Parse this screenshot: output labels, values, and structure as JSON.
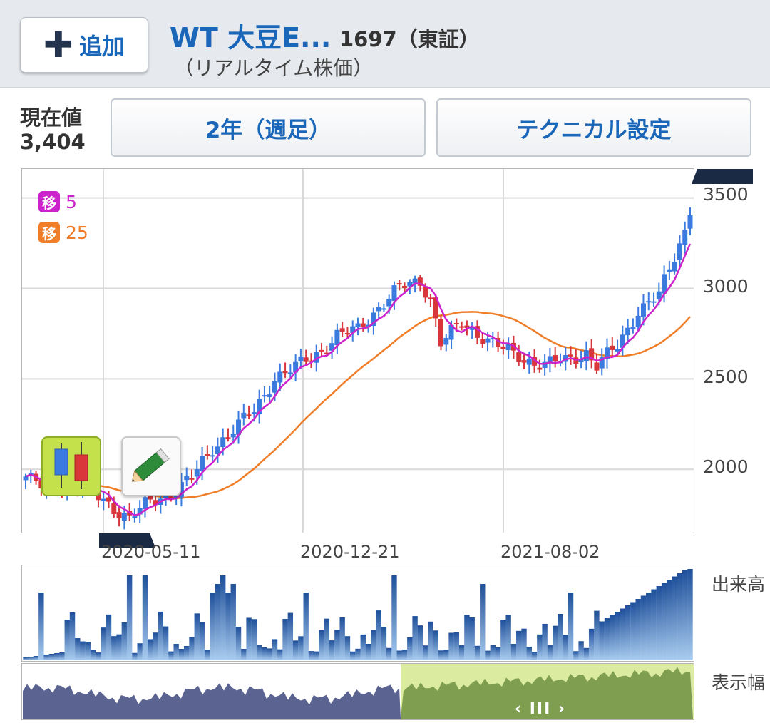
{
  "header": {
    "add_button_label": "追加",
    "add_icon": "plus-icon",
    "title": "WT 大豆E...",
    "code": "1697（東証）",
    "subtitle": "（リアルタイム株価）"
  },
  "price": {
    "label": "現在値",
    "value": "3,404"
  },
  "controls": {
    "period_label": "2年（週足）",
    "technical_label": "テクニカル設定"
  },
  "legend": [
    {
      "badge": "移",
      "value": "5",
      "color": "#cc22cc"
    },
    {
      "badge": "移",
      "value": "25",
      "color": "#f07d28"
    }
  ],
  "tools": {
    "candle_icon": "candlestick-icon",
    "pencil_icon": "pencil-icon"
  },
  "chart_data": {
    "type": "candlestick",
    "y_ticks": [
      "3500",
      "3000",
      "2500",
      "2000"
    ],
    "ylim": [
      1650,
      3660
    ],
    "x_ticks": [
      "2020-05-11",
      "2020-12-21",
      "2021-08-02"
    ],
    "close_anchors": [
      [
        0,
        1960
      ],
      [
        4,
        1880
      ],
      [
        8,
        1940
      ],
      [
        12,
        1880
      ],
      [
        16,
        1810
      ],
      [
        20,
        1730
      ],
      [
        24,
        1820
      ],
      [
        28,
        1870
      ],
      [
        32,
        1950
      ],
      [
        36,
        2120
      ],
      [
        40,
        2220
      ],
      [
        44,
        2320
      ],
      [
        48,
        2510
      ],
      [
        52,
        2560
      ],
      [
        56,
        2640
      ],
      [
        60,
        2740
      ],
      [
        64,
        2770
      ],
      [
        68,
        2900
      ],
      [
        72,
        3000
      ],
      [
        76,
        3040
      ],
      [
        78,
        2950
      ],
      [
        80,
        2700
      ],
      [
        84,
        2800
      ],
      [
        88,
        2740
      ],
      [
        92,
        2660
      ],
      [
        96,
        2610
      ],
      [
        100,
        2580
      ],
      [
        104,
        2600
      ],
      [
        108,
        2650
      ],
      [
        110,
        2570
      ],
      [
        114,
        2680
      ],
      [
        118,
        2880
      ],
      [
        122,
        2960
      ],
      [
        126,
        3250
      ],
      [
        128,
        3400
      ]
    ],
    "volume_label": "出来高",
    "range_label": "表示幅",
    "colors": {
      "up": "#3b7be0",
      "down": "#d9363b",
      "ma5": "#cc22cc",
      "ma25": "#f07d28"
    }
  },
  "range_handle": "‹ III ›"
}
